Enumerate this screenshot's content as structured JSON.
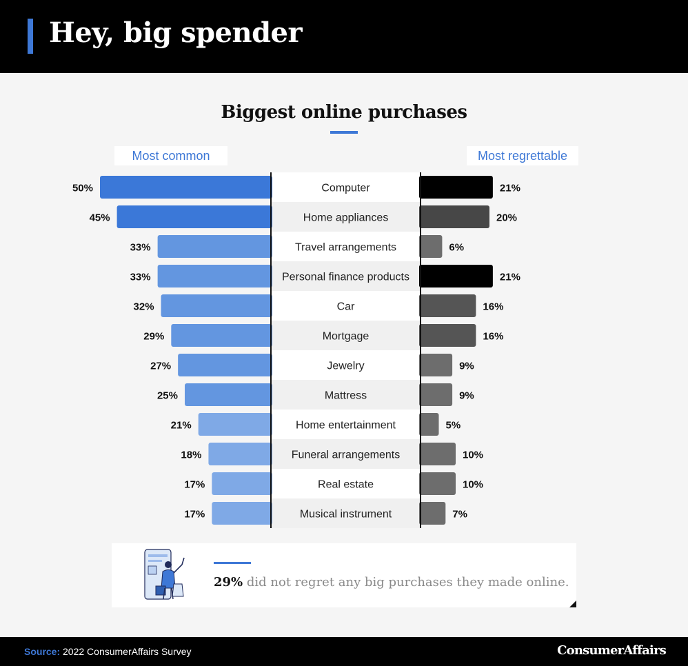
{
  "header": {
    "title": "Hey, big spender"
  },
  "colors": {
    "accent": "#3e78d6",
    "common_dark": "#3b78d8",
    "common_mid": "#6396e0",
    "common_light": "#7fa9e6",
    "regret_darkest": "#000000",
    "regret_dark": "#474747",
    "regret_mid": "#555555",
    "regret_light": "#6d6d6d"
  },
  "chart_data": {
    "type": "bar",
    "title": "Biggest online purchases",
    "categories": [
      "Computer",
      "Home appliances",
      "Travel arrangements",
      "Personal finance products",
      "Car",
      "Mortgage",
      "Jewelry",
      "Mattress",
      "Home entertainment",
      "Funeral arrangements",
      "Real estate",
      "Musical instrument"
    ],
    "series": [
      {
        "name": "Most common",
        "values": [
          50,
          45,
          33,
          33,
          32,
          29,
          27,
          25,
          21,
          18,
          17,
          17
        ]
      },
      {
        "name": "Most regrettable",
        "values": [
          21,
          20,
          6,
          21,
          16,
          16,
          9,
          9,
          5,
          10,
          10,
          7
        ]
      }
    ],
    "value_suffix": "%",
    "xlabel": "",
    "ylabel": ""
  },
  "note": {
    "highlight": "29%",
    "text": " did not regret any big purchases they made online."
  },
  "footer": {
    "source_label": "Source:",
    "source_text": " 2022 ConsumerAffairs Survey",
    "brand": "ConsumerAffairs"
  }
}
